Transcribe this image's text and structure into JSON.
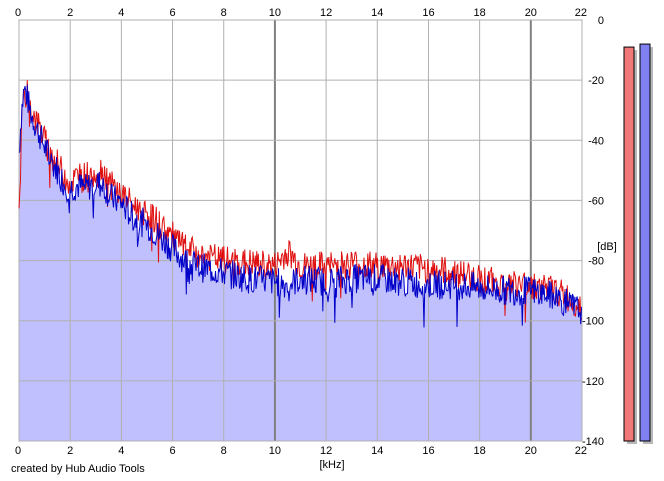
{
  "credit": "created by Hub Audio Tools",
  "colors": {
    "left_channel": "#e01010",
    "right_channel": "#0000c8",
    "fill": "#c0c0ff",
    "meter_left": "#f07878",
    "meter_right": "#8080f0",
    "grid": "#b0b0b0",
    "grid_major": "#808080"
  },
  "meters": {
    "left_level_db": -9,
    "right_level_db": -8
  },
  "chart_data": {
    "type": "line",
    "title": "",
    "xlabel": "[kHz]",
    "ylabel": "[dB]",
    "xlim": [
      0,
      22
    ],
    "ylim": [
      -140,
      0
    ],
    "x_ticks": [
      0,
      2,
      4,
      6,
      8,
      10,
      12,
      14,
      16,
      18,
      20,
      22
    ],
    "y_ticks": [
      0,
      -20,
      -40,
      -60,
      -80,
      -100,
      -120,
      -140
    ],
    "grid": true,
    "series": [
      {
        "color": "#e01010",
        "x": [
          0.0,
          0.1,
          0.2,
          0.3,
          0.4,
          0.5,
          0.6,
          0.8,
          1.0,
          1.2,
          1.5,
          1.8,
          2.0,
          2.3,
          2.6,
          3.0,
          3.3,
          3.6,
          4.0,
          4.5,
          5.0,
          5.5,
          6.0,
          6.5,
          7.0,
          7.5,
          8.0,
          9.0,
          10.0,
          10.5,
          11.0,
          12.0,
          13.0,
          14.0,
          15.0,
          16.0,
          17.0,
          18.0,
          19.0,
          20.0,
          21.0,
          21.5,
          22.0
        ],
        "values": [
          -67,
          -35,
          -26,
          -24,
          -28,
          -30,
          -32,
          -36,
          -40,
          -44,
          -48,
          -52,
          -54,
          -52,
          -52,
          -50,
          -50,
          -55,
          -58,
          -62,
          -64,
          -68,
          -72,
          -76,
          -78,
          -79,
          -80,
          -81,
          -82,
          -77,
          -82,
          -82,
          -81,
          -82,
          -82,
          -83,
          -84,
          -86,
          -88,
          -88,
          -90,
          -93,
          -95
        ]
      },
      {
        "color": "#0000c8",
        "x": [
          0.0,
          0.1,
          0.2,
          0.3,
          0.4,
          0.5,
          0.6,
          0.8,
          1.0,
          1.2,
          1.5,
          1.8,
          2.0,
          2.3,
          2.6,
          3.0,
          3.3,
          3.6,
          4.0,
          4.5,
          5.0,
          5.5,
          6.0,
          6.5,
          7.0,
          7.5,
          8.0,
          9.0,
          10.0,
          10.5,
          11.0,
          12.0,
          13.0,
          14.0,
          15.0,
          16.0,
          17.0,
          18.0,
          19.0,
          20.0,
          21.0,
          21.5,
          22.0
        ],
        "values": [
          -44,
          -30,
          -23,
          -25,
          -29,
          -32,
          -34,
          -38,
          -42,
          -46,
          -50,
          -55,
          -56,
          -55,
          -56,
          -54,
          -55,
          -59,
          -61,
          -66,
          -68,
          -72,
          -76,
          -80,
          -82,
          -83,
          -84,
          -86,
          -87,
          -88,
          -86,
          -87,
          -86,
          -86,
          -87,
          -88,
          -88,
          -89,
          -90,
          -90,
          -92,
          -95,
          -97
        ]
      }
    ]
  }
}
